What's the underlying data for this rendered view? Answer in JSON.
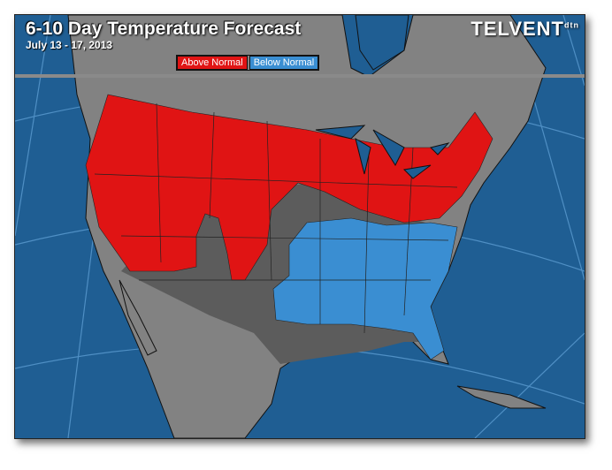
{
  "header": {
    "title": "6-10 Day Temperature Forecast",
    "subtitle": "July 13 - 17, 2013",
    "logo": "TELVENT",
    "logo_badge": "dtn"
  },
  "legend": [
    {
      "label": "Above Normal",
      "color": "#e01414"
    },
    {
      "label": "Below Normal",
      "color": "#3a8ed2"
    }
  ],
  "colors": {
    "ocean": "#1f5e93",
    "land": "#828282",
    "normal": "#5c5c5c",
    "border": "#1a1a1a"
  }
}
